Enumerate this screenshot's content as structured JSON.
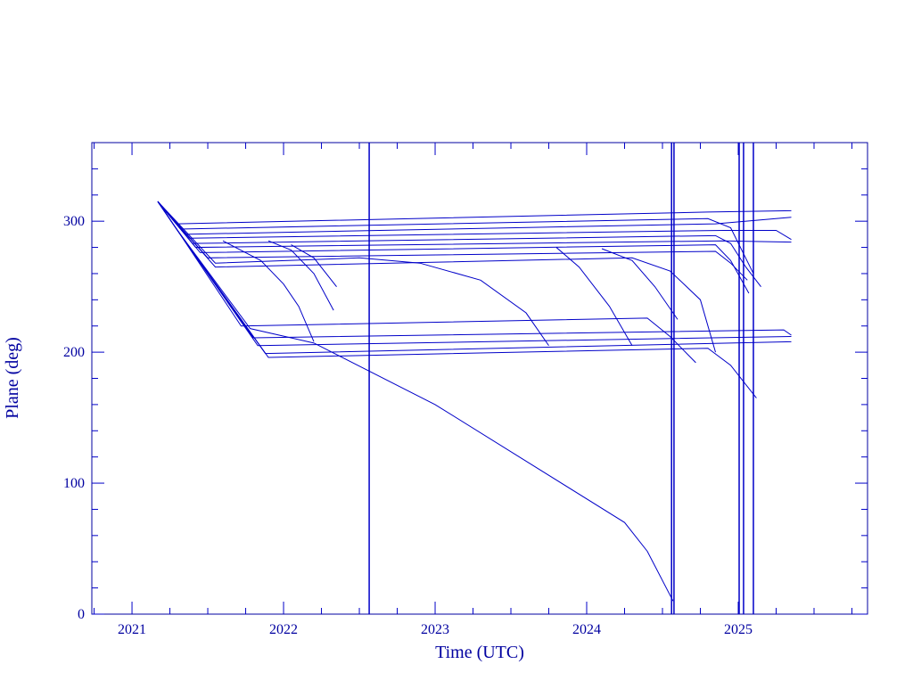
{
  "chart_data": {
    "type": "line",
    "xlabel": "Time (UTC)",
    "ylabel": "Plane (deg)",
    "color": "#0000c8",
    "xlim": [
      2020.735,
      2025.853
    ],
    "ylim": [
      0,
      360
    ],
    "xticks": [
      2021,
      2022,
      2023,
      2024,
      2025
    ],
    "yticks": [
      0,
      100,
      200,
      300
    ],
    "xminorticks": [
      2020.75,
      2021.25,
      2021.5,
      2021.75,
      2022.25,
      2022.5,
      2022.75,
      2023.25,
      2023.5,
      2023.75,
      2024.25,
      2024.5,
      2024.75,
      2025.25,
      2025.5,
      2025.75
    ],
    "yminorticks": [
      20,
      40,
      60,
      80,
      120,
      140,
      160,
      180,
      220,
      240,
      260,
      280,
      320,
      340
    ],
    "vlines": [
      2022.565,
      2024.56,
      2024.576,
      2025.006,
      2025.035,
      2025.1
    ],
    "series": [
      {
        "x": [
          2021.17,
          2021.3,
          2024.8,
          2025.35
        ],
        "values": [
          315,
          298,
          307,
          308
        ]
      },
      {
        "x": [
          2021.17,
          2021.32,
          2024.8,
          2024.95,
          2025.1
        ],
        "values": [
          315,
          294,
          302,
          295,
          260
        ]
      },
      {
        "x": [
          2021.17,
          2021.35,
          2024.85,
          2025.35
        ],
        "values": [
          315,
          290,
          298,
          303
        ]
      },
      {
        "x": [
          2021.17,
          2021.38,
          2024.9,
          2025.25,
          2025.35
        ],
        "values": [
          315,
          287,
          293,
          293,
          286
        ]
      },
      {
        "x": [
          2021.17,
          2021.4,
          2024.85,
          2024.95,
          2025.05,
          2025.15
        ],
        "values": [
          315,
          283,
          289,
          283,
          265,
          250
        ]
      },
      {
        "x": [
          2021.17,
          2021.42,
          2024.9,
          2025.35
        ],
        "values": [
          315,
          280,
          285,
          284
        ]
      },
      {
        "x": [
          2021.17,
          2021.45,
          2024.85,
          2024.95,
          2025.07
        ],
        "values": [
          315,
          276,
          282,
          270,
          245
        ]
      },
      {
        "x": [
          2021.17,
          2021.5,
          2024.85,
          2024.95,
          2025.06
        ],
        "values": [
          315,
          272,
          277,
          268,
          255
        ]
      },
      {
        "x": [
          2021.17,
          2021.55,
          2022.5,
          2022.9,
          2023.3,
          2023.6,
          2023.75
        ],
        "values": [
          315,
          268,
          272,
          268,
          255,
          230,
          205
        ]
      },
      {
        "x": [
          2021.17,
          2021.55,
          2024.3,
          2024.55,
          2024.75,
          2024.85
        ],
        "values": [
          315,
          265,
          272,
          262,
          240,
          200
        ]
      },
      {
        "x": [
          2021.6,
          2021.85,
          2022.0,
          2022.1,
          2022.2
        ],
        "values": [
          285,
          270,
          252,
          235,
          208
        ]
      },
      {
        "x": [
          2021.9,
          2022.05,
          2022.2,
          2022.33
        ],
        "values": [
          285,
          278,
          260,
          232
        ]
      },
      {
        "x": [
          2022.05,
          2022.2,
          2022.35
        ],
        "values": [
          282,
          272,
          250
        ]
      },
      {
        "x": [
          2023.8,
          2023.95,
          2024.15,
          2024.3
        ],
        "values": [
          280,
          265,
          235,
          205
        ]
      },
      {
        "x": [
          2024.1,
          2024.3,
          2024.45,
          2024.6
        ],
        "values": [
          279,
          270,
          250,
          225
        ]
      },
      {
        "x": [
          2021.17,
          2021.3,
          2021.72,
          2024.4,
          2024.55,
          2024.72
        ],
        "values": [
          315,
          293,
          220,
          226,
          212,
          192
        ]
      },
      {
        "x": [
          2021.17,
          2021.3,
          2021.8,
          2025.3,
          2025.35
        ],
        "values": [
          315,
          293,
          211,
          217,
          213
        ]
      },
      {
        "x": [
          2021.17,
          2021.3,
          2021.83,
          2025.35
        ],
        "values": [
          315,
          293,
          205,
          212
        ]
      },
      {
        "x": [
          2021.17,
          2021.3,
          2021.88,
          2025.35
        ],
        "values": [
          315,
          293,
          199,
          208
        ]
      },
      {
        "x": [
          2021.17,
          2021.3,
          2021.9,
          2024.8,
          2024.95,
          2025.12
        ],
        "values": [
          315,
          293,
          196,
          203,
          190,
          165
        ]
      },
      {
        "x": [
          2021.17,
          2021.3,
          2021.78,
          2022.2,
          2023.0,
          2024.25,
          2024.4,
          2024.57
        ],
        "values": [
          315,
          293,
          218,
          207,
          160,
          70,
          48,
          10
        ]
      }
    ]
  }
}
